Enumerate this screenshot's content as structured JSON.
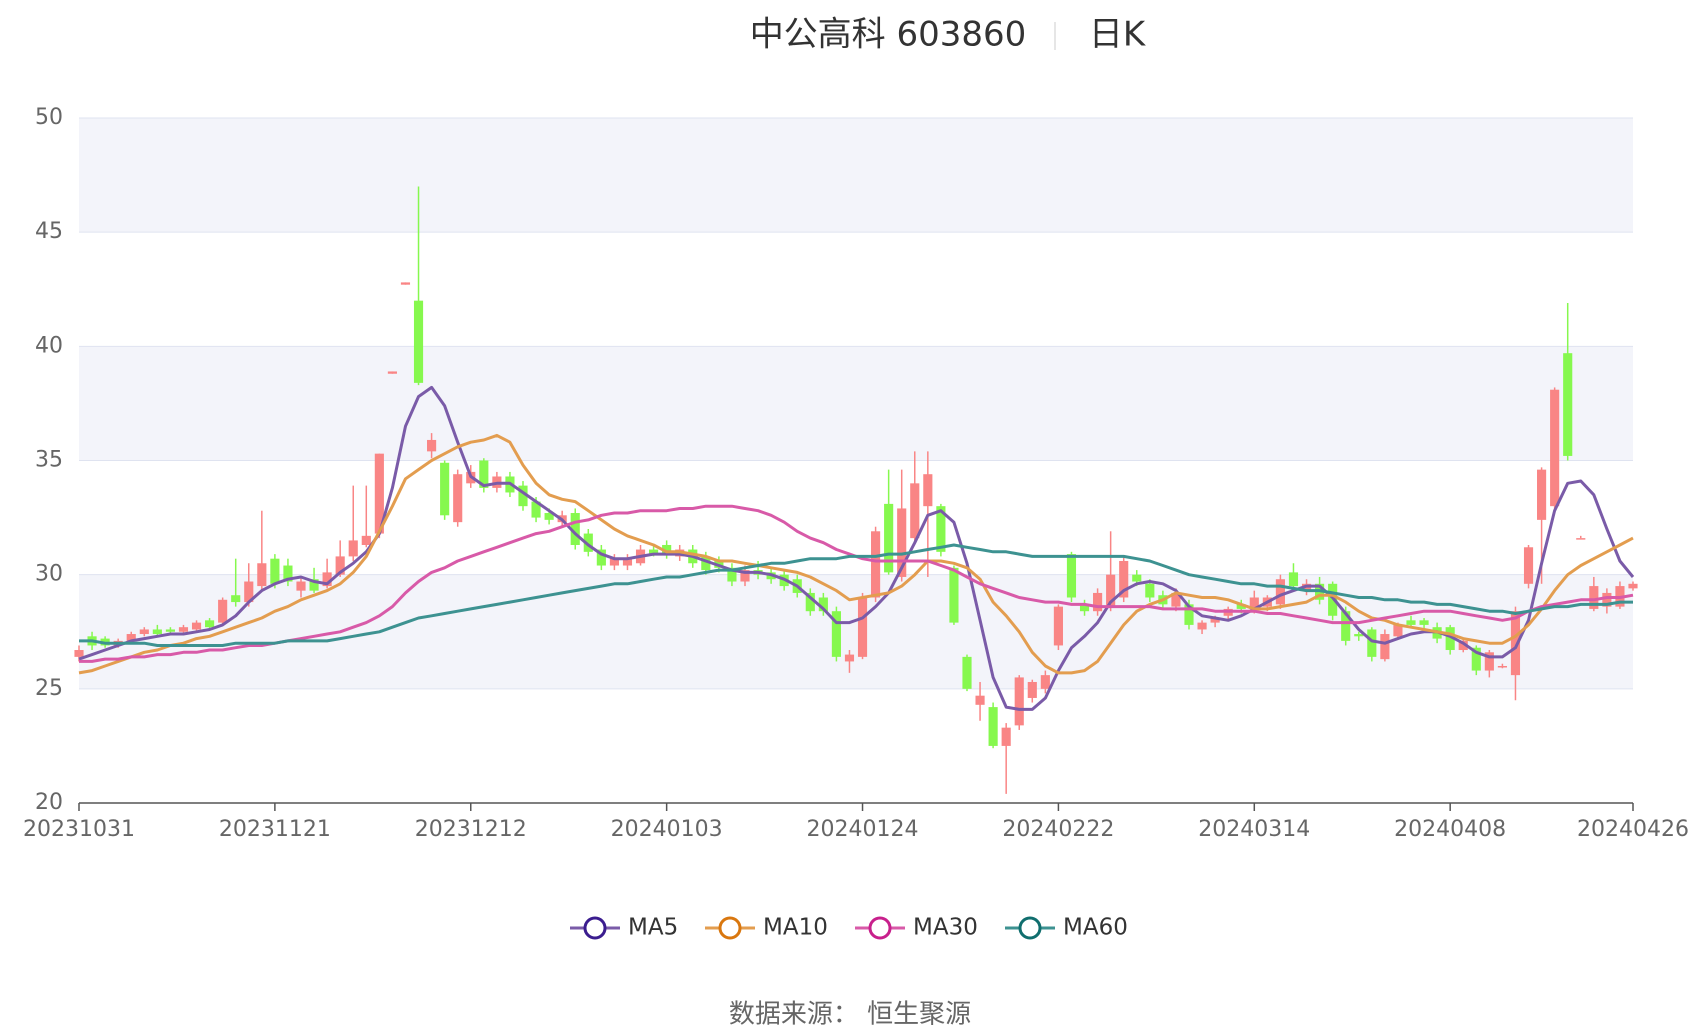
{
  "chart_data": {
    "type": "candlestick",
    "title": "中公高科 603860",
    "period": "日K",
    "source": "数据来源： 恒生聚源",
    "categories": [
      "20231031",
      null,
      null,
      null,
      null,
      null,
      null,
      null,
      null,
      null,
      null,
      null,
      null,
      null,
      null,
      "20231121",
      null,
      null,
      null,
      null,
      null,
      null,
      null,
      null,
      null,
      null,
      null,
      null,
      null,
      null,
      "20231212",
      null,
      null,
      null,
      null,
      null,
      null,
      null,
      null,
      null,
      null,
      null,
      null,
      null,
      null,
      "20240103",
      null,
      null,
      null,
      null,
      null,
      null,
      null,
      null,
      null,
      null,
      null,
      null,
      null,
      null,
      "20240124",
      null,
      null,
      null,
      null,
      null,
      null,
      null,
      null,
      null,
      null,
      null,
      null,
      null,
      null,
      "20240222",
      null,
      null,
      null,
      null,
      null,
      null,
      null,
      null,
      null,
      null,
      null,
      null,
      null,
      null,
      "20240314",
      null,
      null,
      null,
      null,
      null,
      null,
      null,
      null,
      null,
      null,
      null,
      null,
      null,
      null,
      "20240408",
      null,
      null,
      null,
      null,
      null,
      null,
      null,
      null,
      null,
      null,
      null,
      null,
      null,
      "20240426"
    ],
    "ohlc": [
      [
        26.4,
        26.9,
        26.2,
        26.7
      ],
      [
        27.3,
        27.5,
        26.7,
        26.9
      ],
      [
        27.2,
        27.3,
        26.8,
        26.9
      ],
      [
        26.9,
        27.2,
        26.8,
        27.1
      ],
      [
        27.1,
        27.5,
        27.0,
        27.4
      ],
      [
        27.4,
        27.7,
        27.3,
        27.6
      ],
      [
        27.6,
        27.8,
        27.3,
        27.4
      ],
      [
        27.6,
        27.7,
        27.4,
        27.5
      ],
      [
        27.5,
        27.8,
        27.4,
        27.7
      ],
      [
        27.6,
        28.0,
        27.5,
        27.9
      ],
      [
        28.0,
        28.1,
        27.6,
        27.7
      ],
      [
        27.9,
        29.0,
        27.8,
        28.9
      ],
      [
        29.1,
        30.7,
        28.6,
        28.8
      ],
      [
        28.8,
        30.5,
        28.6,
        29.7
      ],
      [
        29.5,
        32.8,
        29.3,
        30.5
      ],
      [
        30.7,
        30.9,
        29.4,
        29.6
      ],
      [
        30.4,
        30.7,
        29.5,
        29.7
      ],
      [
        29.3,
        29.9,
        29.0,
        29.7
      ],
      [
        29.8,
        30.3,
        29.2,
        29.3
      ],
      [
        29.5,
        30.7,
        29.4,
        30.1
      ],
      [
        30.0,
        31.5,
        29.9,
        30.8
      ],
      [
        30.8,
        33.9,
        30.6,
        31.5
      ],
      [
        31.3,
        33.9,
        31.2,
        31.7
      ],
      [
        31.8,
        35.3,
        31.6,
        35.3
      ],
      [
        38.8,
        38.9,
        38.8,
        38.9
      ],
      [
        42.7,
        42.8,
        42.7,
        42.8
      ],
      [
        42.0,
        47.0,
        38.3,
        38.4
      ],
      [
        35.4,
        36.2,
        35.1,
        35.9
      ],
      [
        34.9,
        35.0,
        32.4,
        32.6
      ],
      [
        32.3,
        34.6,
        32.1,
        34.4
      ],
      [
        34.0,
        34.8,
        33.8,
        34.5
      ],
      [
        35.0,
        35.1,
        33.6,
        33.8
      ],
      [
        33.8,
        34.5,
        33.6,
        34.3
      ],
      [
        34.3,
        34.5,
        33.4,
        33.6
      ],
      [
        33.9,
        34.1,
        32.8,
        33.0
      ],
      [
        33.2,
        33.4,
        32.3,
        32.5
      ],
      [
        32.7,
        32.9,
        32.2,
        32.4
      ],
      [
        32.3,
        32.8,
        32.1,
        32.6
      ],
      [
        32.7,
        32.9,
        31.1,
        31.3
      ],
      [
        31.8,
        32.0,
        30.8,
        31.0
      ],
      [
        31.1,
        31.3,
        30.2,
        30.4
      ],
      [
        30.4,
        30.9,
        30.2,
        30.7
      ],
      [
        30.4,
        30.9,
        30.2,
        30.7
      ],
      [
        30.5,
        31.3,
        30.4,
        31.1
      ],
      [
        31.1,
        31.3,
        30.8,
        30.9
      ],
      [
        31.3,
        31.5,
        30.7,
        30.9
      ],
      [
        30.8,
        31.3,
        30.6,
        31.1
      ],
      [
        31.1,
        31.3,
        30.3,
        30.5
      ],
      [
        30.8,
        31.0,
        30.0,
        30.2
      ],
      [
        30.6,
        30.8,
        30.1,
        30.3
      ],
      [
        30.3,
        30.5,
        29.5,
        29.7
      ],
      [
        29.7,
        30.4,
        29.5,
        30.2
      ],
      [
        30.2,
        30.6,
        29.8,
        30.0
      ],
      [
        30.1,
        30.3,
        29.6,
        29.8
      ],
      [
        30.0,
        30.2,
        29.3,
        29.5
      ],
      [
        29.8,
        30.0,
        29.0,
        29.2
      ],
      [
        29.2,
        29.4,
        28.2,
        28.4
      ],
      [
        29.0,
        29.2,
        28.2,
        28.4
      ],
      [
        28.4,
        28.6,
        26.2,
        26.4
      ],
      [
        26.2,
        26.7,
        25.7,
        26.5
      ],
      [
        26.4,
        29.2,
        26.3,
        29.0
      ],
      [
        29.0,
        32.1,
        28.8,
        31.9
      ],
      [
        33.1,
        34.6,
        30.0,
        30.1
      ],
      [
        29.9,
        34.6,
        29.7,
        32.9
      ],
      [
        31.6,
        35.4,
        31.4,
        34.0
      ],
      [
        33.0,
        35.4,
        29.9,
        34.4
      ],
      [
        33.0,
        33.1,
        30.8,
        31.0
      ],
      [
        30.3,
        30.4,
        27.8,
        27.9
      ],
      [
        26.4,
        26.5,
        24.9,
        25.0
      ],
      [
        24.3,
        25.3,
        23.6,
        24.7
      ],
      [
        24.2,
        24.4,
        22.4,
        22.5
      ],
      [
        22.5,
        23.5,
        20.4,
        23.3
      ],
      [
        23.4,
        25.6,
        23.2,
        25.5
      ],
      [
        24.6,
        25.4,
        24.4,
        25.3
      ],
      [
        25.0,
        25.8,
        24.8,
        25.6
      ],
      [
        26.9,
        28.7,
        26.7,
        28.6
      ],
      [
        30.9,
        31.0,
        28.8,
        29.0
      ],
      [
        28.7,
        28.9,
        28.2,
        28.4
      ],
      [
        28.4,
        29.4,
        28.2,
        29.2
      ],
      [
        28.6,
        31.9,
        28.4,
        30.0
      ],
      [
        29.0,
        30.8,
        28.8,
        30.6
      ],
      [
        30.0,
        30.2,
        29.5,
        29.7
      ],
      [
        29.6,
        29.8,
        28.8,
        29.0
      ],
      [
        29.1,
        29.3,
        28.5,
        28.7
      ],
      [
        28.6,
        29.4,
        28.4,
        29.2
      ],
      [
        28.7,
        28.9,
        27.6,
        27.8
      ],
      [
        27.6,
        28.0,
        27.4,
        27.9
      ],
      [
        27.9,
        28.2,
        27.7,
        28.1
      ],
      [
        28.2,
        28.6,
        28.0,
        28.5
      ],
      [
        28.7,
        28.9,
        28.3,
        28.5
      ],
      [
        28.5,
        29.3,
        28.3,
        29.0
      ],
      [
        28.6,
        29.1,
        28.4,
        29.0
      ],
      [
        28.7,
        30.0,
        28.5,
        29.8
      ],
      [
        30.1,
        30.5,
        29.3,
        29.5
      ],
      [
        29.3,
        29.8,
        29.1,
        29.6
      ],
      [
        29.6,
        29.9,
        28.7,
        28.9
      ],
      [
        29.6,
        29.7,
        28.0,
        28.2
      ],
      [
        28.4,
        28.6,
        26.9,
        27.1
      ],
      [
        27.4,
        27.5,
        27.1,
        27.3
      ],
      [
        27.6,
        27.7,
        26.2,
        26.4
      ],
      [
        26.3,
        27.6,
        26.2,
        27.4
      ],
      [
        27.3,
        27.9,
        27.2,
        27.8
      ],
      [
        28.0,
        28.2,
        27.7,
        27.8
      ],
      [
        28.0,
        28.1,
        27.6,
        27.8
      ],
      [
        27.7,
        27.9,
        27.0,
        27.2
      ],
      [
        27.7,
        27.8,
        26.5,
        26.7
      ],
      [
        26.7,
        27.2,
        26.6,
        27.1
      ],
      [
        26.8,
        26.9,
        25.6,
        25.8
      ],
      [
        25.8,
        26.7,
        25.5,
        26.6
      ],
      [
        26.0,
        26.1,
        25.9,
        26.0
      ],
      [
        25.6,
        28.6,
        24.5,
        28.4
      ],
      [
        29.6,
        31.3,
        29.4,
        31.2
      ],
      [
        32.4,
        34.7,
        29.6,
        34.6
      ],
      [
        33.0,
        38.2,
        32.8,
        38.1
      ],
      [
        39.7,
        41.9,
        35.0,
        35.2
      ],
      [
        31.6,
        31.7,
        31.6,
        31.6
      ],
      [
        28.5,
        29.9,
        28.4,
        29.5
      ],
      [
        28.6,
        29.4,
        28.3,
        29.2
      ],
      [
        28.6,
        29.7,
        28.5,
        29.5
      ],
      [
        29.4,
        29.7,
        29.3,
        29.6
      ]
    ],
    "up_color": "#f98585",
    "down_color": "#86f84e",
    "series": [
      {
        "name": "MA5",
        "color": "#7a5ba8",
        "marker_color": "#3b1d8f",
        "values": [
          26.3,
          26.5,
          26.7,
          26.9,
          27.1,
          27.2,
          27.3,
          27.4,
          27.4,
          27.5,
          27.6,
          27.8,
          28.2,
          28.8,
          29.3,
          29.6,
          29.8,
          29.9,
          29.7,
          29.6,
          30.1,
          30.5,
          31.0,
          31.8,
          33.8,
          36.5,
          37.8,
          38.2,
          37.4,
          35.8,
          34.3,
          33.9,
          34.0,
          34.0,
          33.6,
          33.2,
          32.8,
          32.4,
          31.8,
          31.3,
          30.9,
          30.7,
          30.7,
          30.8,
          30.9,
          30.9,
          30.9,
          30.8,
          30.6,
          30.4,
          30.2,
          30.1,
          30.1,
          30.0,
          29.8,
          29.5,
          29.0,
          28.5,
          27.9,
          27.9,
          28.1,
          28.6,
          29.2,
          30.3,
          31.4,
          32.6,
          32.8,
          32.3,
          30.5,
          28.0,
          25.5,
          24.2,
          24.1,
          24.1,
          24.6,
          25.8,
          26.8,
          27.3,
          27.9,
          28.8,
          29.3,
          29.6,
          29.7,
          29.6,
          29.3,
          28.6,
          28.2,
          28.1,
          28.0,
          28.2,
          28.5,
          28.8,
          29.1,
          29.3,
          29.5,
          29.5,
          29.0,
          28.3,
          27.6,
          27.1,
          27.0,
          27.2,
          27.4,
          27.5,
          27.5,
          27.3,
          27.0,
          26.6,
          26.4,
          26.4,
          26.8,
          28.0,
          30.5,
          32.8,
          34.0,
          34.1,
          33.5,
          32.0,
          30.6,
          29.9
        ]
      },
      {
        "name": "MA10",
        "color": "#e39d4f",
        "marker_color": "#d9770f",
        "values": [
          25.7,
          25.8,
          26.0,
          26.2,
          26.4,
          26.6,
          26.7,
          26.9,
          27.0,
          27.2,
          27.3,
          27.5,
          27.7,
          27.9,
          28.1,
          28.4,
          28.6,
          28.9,
          29.1,
          29.3,
          29.6,
          30.1,
          30.8,
          31.9,
          33.0,
          34.2,
          34.6,
          35.0,
          35.3,
          35.6,
          35.8,
          35.9,
          36.1,
          35.8,
          34.8,
          34.0,
          33.5,
          33.3,
          33.2,
          32.8,
          32.4,
          32.0,
          31.7,
          31.5,
          31.3,
          31.0,
          31.0,
          30.9,
          30.8,
          30.6,
          30.6,
          30.5,
          30.4,
          30.3,
          30.2,
          30.1,
          29.9,
          29.6,
          29.3,
          28.9,
          29.0,
          29.1,
          29.2,
          29.5,
          30.0,
          30.6,
          30.6,
          30.5,
          30.3,
          29.8,
          28.8,
          28.2,
          27.5,
          26.6,
          26.0,
          25.7,
          25.7,
          25.8,
          26.2,
          27.0,
          27.8,
          28.4,
          28.7,
          28.9,
          29.2,
          29.1,
          29.0,
          29.0,
          28.9,
          28.7,
          28.5,
          28.5,
          28.6,
          28.7,
          28.8,
          29.1,
          29.1,
          28.8,
          28.4,
          28.1,
          28.0,
          27.8,
          27.7,
          27.6,
          27.5,
          27.4,
          27.2,
          27.1,
          27.0,
          27.0,
          27.3,
          27.8,
          28.5,
          29.3,
          30.0,
          30.4,
          30.7,
          31.0,
          31.3,
          31.6
        ]
      },
      {
        "name": "MA30",
        "color": "#d85aa8",
        "marker_color": "#c8208c",
        "values": [
          26.2,
          26.2,
          26.3,
          26.3,
          26.4,
          26.4,
          26.5,
          26.5,
          26.6,
          26.6,
          26.7,
          26.7,
          26.8,
          26.9,
          26.9,
          27.0,
          27.1,
          27.2,
          27.3,
          27.4,
          27.5,
          27.7,
          27.9,
          28.2,
          28.6,
          29.2,
          29.7,
          30.1,
          30.3,
          30.6,
          30.8,
          31.0,
          31.2,
          31.4,
          31.6,
          31.8,
          31.9,
          32.1,
          32.3,
          32.4,
          32.6,
          32.7,
          32.7,
          32.8,
          32.8,
          32.8,
          32.9,
          32.9,
          33.0,
          33.0,
          33.0,
          32.9,
          32.8,
          32.6,
          32.3,
          31.9,
          31.6,
          31.4,
          31.1,
          30.9,
          30.7,
          30.6,
          30.6,
          30.6,
          30.6,
          30.6,
          30.4,
          30.2,
          29.9,
          29.6,
          29.4,
          29.2,
          29.0,
          28.9,
          28.8,
          28.8,
          28.7,
          28.7,
          28.6,
          28.6,
          28.6,
          28.6,
          28.6,
          28.5,
          28.5,
          28.5,
          28.5,
          28.4,
          28.4,
          28.4,
          28.4,
          28.3,
          28.3,
          28.2,
          28.1,
          28.0,
          27.9,
          27.9,
          27.9,
          28.0,
          28.1,
          28.2,
          28.3,
          28.4,
          28.4,
          28.4,
          28.3,
          28.2,
          28.1,
          28.0,
          28.1,
          28.4,
          28.6,
          28.7,
          28.8,
          28.9,
          28.9,
          29.0,
          29.0,
          29.1
        ]
      },
      {
        "name": "MA60",
        "color": "#3d9291",
        "marker_color": "#106e6e",
        "values": [
          27.1,
          27.1,
          27.0,
          27.0,
          27.0,
          27.0,
          26.9,
          26.9,
          26.9,
          26.9,
          26.9,
          26.9,
          27.0,
          27.0,
          27.0,
          27.0,
          27.1,
          27.1,
          27.1,
          27.1,
          27.2,
          27.3,
          27.4,
          27.5,
          27.7,
          27.9,
          28.1,
          28.2,
          28.3,
          28.4,
          28.5,
          28.6,
          28.7,
          28.8,
          28.9,
          29.0,
          29.1,
          29.2,
          29.3,
          29.4,
          29.5,
          29.6,
          29.6,
          29.7,
          29.8,
          29.9,
          29.9,
          30.0,
          30.1,
          30.2,
          30.2,
          30.3,
          30.4,
          30.5,
          30.5,
          30.6,
          30.7,
          30.7,
          30.7,
          30.8,
          30.8,
          30.8,
          30.9,
          30.9,
          31.0,
          31.1,
          31.2,
          31.3,
          31.2,
          31.1,
          31.0,
          31.0,
          30.9,
          30.8,
          30.8,
          30.8,
          30.8,
          30.8,
          30.8,
          30.8,
          30.8,
          30.7,
          30.6,
          30.4,
          30.2,
          30.0,
          29.9,
          29.8,
          29.7,
          29.6,
          29.6,
          29.5,
          29.5,
          29.4,
          29.3,
          29.3,
          29.2,
          29.1,
          29.0,
          29.0,
          28.9,
          28.9,
          28.8,
          28.8,
          28.7,
          28.7,
          28.6,
          28.5,
          28.4,
          28.4,
          28.3,
          28.4,
          28.5,
          28.6,
          28.6,
          28.7,
          28.7,
          28.7,
          28.8,
          28.8
        ]
      }
    ],
    "ylim": [
      20,
      50
    ],
    "yticks": [
      20,
      25,
      30,
      35,
      40,
      45,
      50
    ],
    "grid": true
  }
}
